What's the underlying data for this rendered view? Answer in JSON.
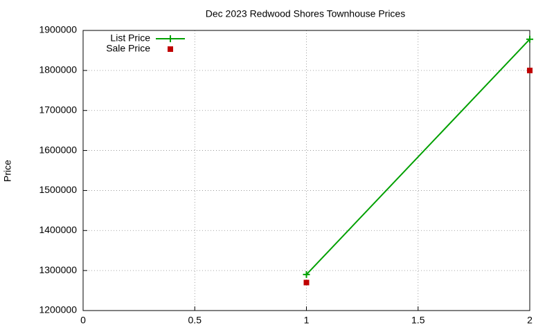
{
  "chart_data": {
    "type": "line",
    "title": "Dec 2023 Redwood Shores Townhouse Prices",
    "y_label": "Price",
    "x": [
      1,
      2
    ],
    "series": [
      {
        "name": "List Price",
        "color": "#00a000",
        "style": "linespoints",
        "values": [
          1290000,
          1878000
        ]
      },
      {
        "name": "Sale Price",
        "color": "#c00000",
        "style": "points",
        "values": [
          1270000,
          1800000
        ]
      }
    ],
    "xlim": [
      0,
      2
    ],
    "xticks": [
      0,
      0.5,
      1,
      1.5,
      2
    ],
    "ylim": [
      1200000,
      1900000
    ],
    "yticks": [
      1200000,
      1300000,
      1400000,
      1500000,
      1600000,
      1700000,
      1800000,
      1900000
    ],
    "grid": true,
    "legend": "top-left"
  }
}
